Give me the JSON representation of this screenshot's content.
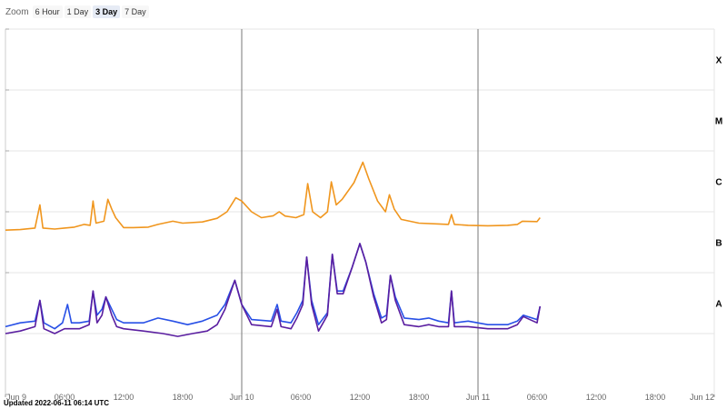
{
  "zoom": {
    "label": "Zoom",
    "options": [
      "6 Hour",
      "1 Day",
      "3 Day",
      "7 Day"
    ],
    "selected": "3 Day"
  },
  "updated": "Updated 2022-06-11 06:14 UTC",
  "colors": {
    "long_wave": "#f0961e",
    "short_wave": "#5a1ea0",
    "short_wave_secondary": "#2850e6",
    "grid": "#e6e6e6",
    "day_divider": "#777777"
  },
  "chart_data": {
    "type": "line",
    "x_unit": "hours since Jun 9 00:00 UTC",
    "y_scale": "log",
    "ylim": [
      1e-09,
      0.001
    ],
    "xlim": [
      0,
      72
    ],
    "x_ticks": [
      {
        "label": "Jun 9",
        "x": 0
      },
      {
        "label": "06:00",
        "x": 6
      },
      {
        "label": "12:00",
        "x": 12
      },
      {
        "label": "18:00",
        "x": 18
      },
      {
        "label": "Jun 10",
        "x": 24
      },
      {
        "label": "06:00",
        "x": 30
      },
      {
        "label": "12:00",
        "x": 36
      },
      {
        "label": "18:00",
        "x": 42
      },
      {
        "label": "Jun 11",
        "x": 48
      },
      {
        "label": "06:00",
        "x": 54
      },
      {
        "label": "12:00",
        "x": 60
      },
      {
        "label": "18:00",
        "x": 66
      },
      {
        "label": "Jun 12",
        "x": 72
      }
    ],
    "flare_classes": [
      {
        "label": "A",
        "level": 1e-08
      },
      {
        "label": "B",
        "level": 1e-07
      },
      {
        "label": "C",
        "level": 1e-06
      },
      {
        "label": "M",
        "level": 1e-05
      },
      {
        "label": "X",
        "level": 0.0001
      }
    ],
    "series": [
      {
        "points": [
          [
            0,
            5e-07
          ],
          [
            1.5,
            5.1e-07
          ],
          [
            3.0,
            5.4e-07
          ],
          [
            3.5,
            1.3e-06
          ],
          [
            3.8,
            5.4e-07
          ],
          [
            5,
            5.2e-07
          ],
          [
            6,
            5.4e-07
          ],
          [
            7,
            5.6e-07
          ],
          [
            8,
            6.2e-07
          ],
          [
            8.6,
            6e-07
          ],
          [
            8.9,
            1.5e-06
          ],
          [
            9.2,
            6.5e-07
          ],
          [
            10,
            7e-07
          ],
          [
            10.4,
            1.6e-06
          ],
          [
            10.8,
            1.1e-06
          ],
          [
            11.2,
            8e-07
          ],
          [
            12,
            5.5e-07
          ],
          [
            13,
            5.5e-07
          ],
          [
            14.5,
            5.6e-07
          ],
          [
            15.5,
            6.2e-07
          ],
          [
            17,
            7e-07
          ],
          [
            18,
            6.5e-07
          ],
          [
            20,
            6.8e-07
          ],
          [
            21.5,
            7.8e-07
          ],
          [
            22.5,
            1e-06
          ],
          [
            23.4,
            1.7e-06
          ],
          [
            24,
            1.5e-06
          ],
          [
            25,
            1e-06
          ],
          [
            26,
            8e-07
          ],
          [
            27.2,
            8.6e-07
          ],
          [
            27.8,
            1e-06
          ],
          [
            28.4,
            8.5e-07
          ],
          [
            29.5,
            8e-07
          ],
          [
            30.3,
            9e-07
          ],
          [
            30.7,
            2.9e-06
          ],
          [
            31.2,
            1e-06
          ],
          [
            32,
            8e-07
          ],
          [
            32.7,
            1e-06
          ],
          [
            33.1,
            3.1e-06
          ],
          [
            33.6,
            1.3e-06
          ],
          [
            34.2,
            1.6e-06
          ],
          [
            35.4,
            3e-06
          ],
          [
            36.3,
            6.5e-06
          ],
          [
            36.9,
            3.5e-06
          ],
          [
            37.8,
            1.5e-06
          ],
          [
            38.6,
            1e-06
          ],
          [
            39.0,
            1.9e-06
          ],
          [
            39.5,
            1.1e-06
          ],
          [
            40.2,
            7.5e-07
          ],
          [
            42,
            6.5e-07
          ],
          [
            44,
            6.3e-07
          ],
          [
            45,
            6.2e-07
          ],
          [
            45.3,
            9e-07
          ],
          [
            45.6,
            6.2e-07
          ],
          [
            47,
            6e-07
          ],
          [
            49,
            5.9e-07
          ],
          [
            51,
            6e-07
          ],
          [
            52,
            6.2e-07
          ],
          [
            52.5,
            7e-07
          ],
          [
            54,
            6.9e-07
          ],
          [
            54.3,
            8e-07
          ]
        ]
      },
      {
        "points": [
          [
            0,
            1.3e-08
          ],
          [
            1.5,
            1.5e-08
          ],
          [
            3.0,
            1.6e-08
          ],
          [
            3.5,
            3.5e-08
          ],
          [
            3.9,
            1.5e-08
          ],
          [
            5,
            1.2e-08
          ],
          [
            5.8,
            1.5e-08
          ],
          [
            6.3,
            3e-08
          ],
          [
            6.7,
            1.5e-08
          ],
          [
            7.5,
            1.5e-08
          ],
          [
            8.5,
            1.6e-08
          ],
          [
            8.9,
            5e-08
          ],
          [
            9.3,
            2e-08
          ],
          [
            9.8,
            2.5e-08
          ],
          [
            10.2,
            4e-08
          ],
          [
            10.8,
            2.5e-08
          ],
          [
            11.3,
            1.7e-08
          ],
          [
            12,
            1.5e-08
          ],
          [
            14,
            1.5e-08
          ],
          [
            15.5,
            1.8e-08
          ],
          [
            17,
            1.6e-08
          ],
          [
            18.5,
            1.4e-08
          ],
          [
            20,
            1.6e-08
          ],
          [
            21.5,
            2e-08
          ],
          [
            22.3,
            3e-08
          ],
          [
            23.3,
            7.5e-08
          ],
          [
            24,
            3e-08
          ],
          [
            25,
            1.7e-08
          ],
          [
            27,
            1.6e-08
          ],
          [
            27.6,
            3e-08
          ],
          [
            28,
            1.6e-08
          ],
          [
            29,
            1.5e-08
          ],
          [
            29.6,
            2.2e-08
          ],
          [
            30.2,
            3.5e-08
          ],
          [
            30.6,
            1.8e-07
          ],
          [
            31.1,
            3.5e-08
          ],
          [
            31.8,
            1.4e-08
          ],
          [
            32.7,
            2.2e-08
          ],
          [
            33.2,
            2e-07
          ],
          [
            33.7,
            5e-08
          ],
          [
            34.3,
            5e-08
          ],
          [
            35.2,
            1.2e-07
          ],
          [
            36.0,
            3e-07
          ],
          [
            36.6,
            1.5e-07
          ],
          [
            37.4,
            4.5e-08
          ],
          [
            38.2,
            1.8e-08
          ],
          [
            38.7,
            2e-08
          ],
          [
            39.1,
            9e-08
          ],
          [
            39.6,
            4e-08
          ],
          [
            40.5,
            1.8e-08
          ],
          [
            42,
            1.7e-08
          ],
          [
            43,
            1.8e-08
          ],
          [
            44,
            1.6e-08
          ],
          [
            45,
            1.5e-08
          ],
          [
            45.3,
            5e-08
          ],
          [
            45.6,
            1.5e-08
          ],
          [
            47,
            1.6e-08
          ],
          [
            49,
            1.4e-08
          ],
          [
            51,
            1.4e-08
          ],
          [
            52,
            1.6e-08
          ],
          [
            52.6,
            2e-08
          ],
          [
            54,
            1.7e-08
          ],
          [
            54.3,
            2.8e-08
          ]
        ]
      },
      {
        "points": [
          [
            0,
            1e-08
          ],
          [
            1.5,
            1.1e-08
          ],
          [
            3.0,
            1.3e-08
          ],
          [
            3.5,
            3.5e-08
          ],
          [
            3.9,
            1.2e-08
          ],
          [
            5,
            1e-08
          ],
          [
            6,
            1.2e-08
          ],
          [
            7.5,
            1.2e-08
          ],
          [
            8.5,
            1.4e-08
          ],
          [
            8.9,
            5e-08
          ],
          [
            9.3,
            1.5e-08
          ],
          [
            9.8,
            2e-08
          ],
          [
            10.2,
            4e-08
          ],
          [
            10.8,
            2e-08
          ],
          [
            11.3,
            1.3e-08
          ],
          [
            12,
            1.2e-08
          ],
          [
            14,
            1.1e-08
          ],
          [
            16,
            1e-08
          ],
          [
            17.5,
            9e-09
          ],
          [
            19,
            1e-08
          ],
          [
            20.5,
            1.1e-08
          ],
          [
            21.5,
            1.4e-08
          ],
          [
            22.3,
            2.5e-08
          ],
          [
            23.3,
            7.5e-08
          ],
          [
            24,
            3e-08
          ],
          [
            25,
            1.4e-08
          ],
          [
            27,
            1.3e-08
          ],
          [
            27.6,
            2.5e-08
          ],
          [
            28,
            1.3e-08
          ],
          [
            29,
            1.2e-08
          ],
          [
            29.6,
            1.8e-08
          ],
          [
            30.2,
            3e-08
          ],
          [
            30.6,
            1.8e-07
          ],
          [
            31.1,
            3e-08
          ],
          [
            31.8,
            1.1e-08
          ],
          [
            32.7,
            2e-08
          ],
          [
            33.2,
            2e-07
          ],
          [
            33.7,
            4.5e-08
          ],
          [
            34.3,
            4.5e-08
          ],
          [
            35.2,
            1.2e-07
          ],
          [
            36.0,
            3e-07
          ],
          [
            36.6,
            1.5e-07
          ],
          [
            37.4,
            4e-08
          ],
          [
            38.2,
            1.5e-08
          ],
          [
            38.7,
            1.7e-08
          ],
          [
            39.1,
            9e-08
          ],
          [
            39.6,
            3.5e-08
          ],
          [
            40.5,
            1.4e-08
          ],
          [
            42,
            1.3e-08
          ],
          [
            43,
            1.4e-08
          ],
          [
            44,
            1.3e-08
          ],
          [
            45,
            1.3e-08
          ],
          [
            45.3,
            5e-08
          ],
          [
            45.6,
            1.3e-08
          ],
          [
            47,
            1.3e-08
          ],
          [
            49,
            1.2e-08
          ],
          [
            51,
            1.2e-08
          ],
          [
            52,
            1.4e-08
          ],
          [
            52.6,
            1.9e-08
          ],
          [
            54,
            1.5e-08
          ],
          [
            54.3,
            2.8e-08
          ]
        ]
      }
    ]
  }
}
